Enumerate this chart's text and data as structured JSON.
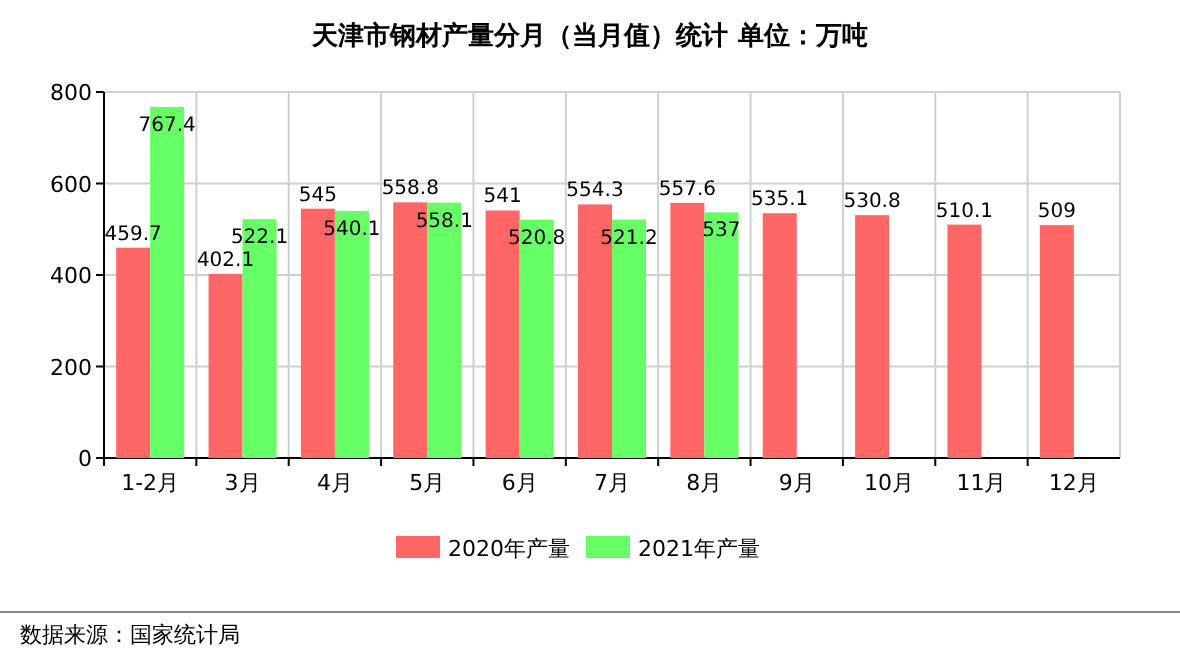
{
  "chart_data": {
    "type": "bar",
    "title": "天津市钢材产量分月（当月值）统计 单位：万吨",
    "categories": [
      "1-2月",
      "3月",
      "4月",
      "5月",
      "6月",
      "7月",
      "8月",
      "9月",
      "10月",
      "11月",
      "12月"
    ],
    "series": [
      {
        "name": "2020年产量",
        "color": "#ff6666",
        "values": [
          459.7,
          402.1,
          545,
          558.8,
          541,
          554.3,
          557.6,
          535.1,
          530.8,
          510.1,
          509
        ]
      },
      {
        "name": "2021年产量",
        "color": "#66ff66",
        "values": [
          767.4,
          522.1,
          540.1,
          558.1,
          520.8,
          521.2,
          537,
          null,
          null,
          null,
          null
        ]
      }
    ],
    "ylim": [
      0,
      800
    ],
    "yticks": [
      0,
      200,
      400,
      600,
      800
    ],
    "grid": true,
    "legend": "bottom",
    "data_labels": true,
    "annotations": [
      "数据来源：国家统计局"
    ]
  }
}
